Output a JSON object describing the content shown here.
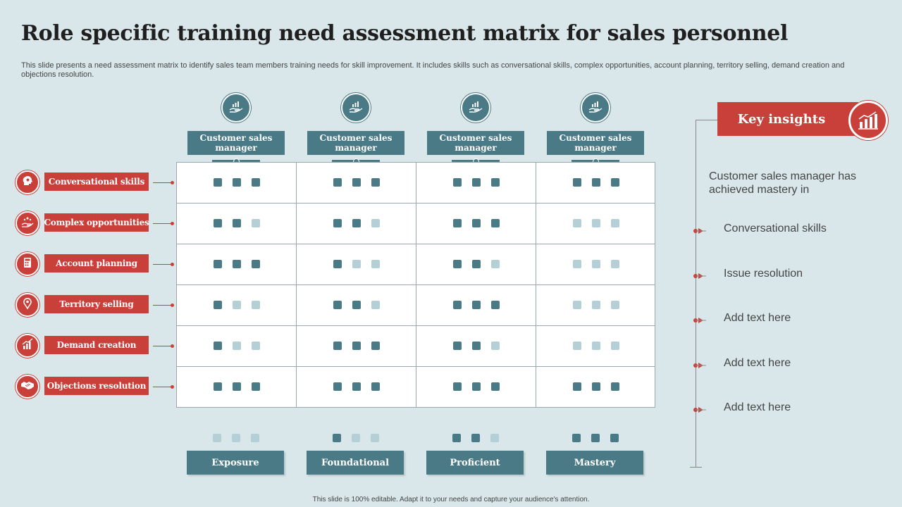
{
  "title": "Role specific training need assessment matrix for sales personnel",
  "description": "This slide presents a need assessment matrix to identify sales team members training needs for skill improvement. It includes skills such as conversational skills, complex opportunities, account planning, territory selling, demand creation and objections resolution.",
  "columns": [
    {
      "label": "Customer sales manager",
      "icon": "hand-chart-icon"
    },
    {
      "label": "Customer sales manager",
      "icon": "hand-chart-icon"
    },
    {
      "label": "Customer sales manager",
      "icon": "hand-chart-icon"
    },
    {
      "label": "Customer sales manager",
      "icon": "hand-chart-icon"
    }
  ],
  "rows": [
    {
      "label": "Conversational skills",
      "icon": "head-gear-icon",
      "levels": [
        3,
        3,
        3,
        3
      ]
    },
    {
      "label": "Complex opportunities",
      "icon": "hand-coins-icon",
      "levels": [
        2,
        2,
        3,
        0
      ]
    },
    {
      "label": "Account planning",
      "icon": "calculator-icon",
      "levels": [
        3,
        1,
        2,
        0
      ]
    },
    {
      "label": "Territory selling",
      "icon": "location-pin-icon",
      "levels": [
        1,
        2,
        3,
        0
      ]
    },
    {
      "label": "Demand creation",
      "icon": "growth-chart-icon",
      "levels": [
        1,
        3,
        2,
        0
      ]
    },
    {
      "label": "Objections resolution",
      "icon": "handshake-icon",
      "levels": [
        3,
        3,
        3,
        3
      ]
    }
  ],
  "legend": [
    {
      "label": "Exposure",
      "level": 0
    },
    {
      "label": "Foundational",
      "level": 1
    },
    {
      "label": "Proficient",
      "level": 2
    },
    {
      "label": "Mastery",
      "level": 3
    }
  ],
  "key_insights": {
    "title": "Key insights",
    "subtitle": "Customer sales manager has achieved mastery in",
    "items": [
      "Conversational skills",
      "Issue resolution",
      "Add text here",
      "Add text here",
      "Add text here"
    ]
  },
  "footer": "This slide is 100% editable. Adapt it to your needs and capture your audience's attention.",
  "colors": {
    "teal": "#4a7a86",
    "teal_light": "#b4d0d6",
    "red": "#c9403b",
    "background": "#d9e7ea"
  }
}
